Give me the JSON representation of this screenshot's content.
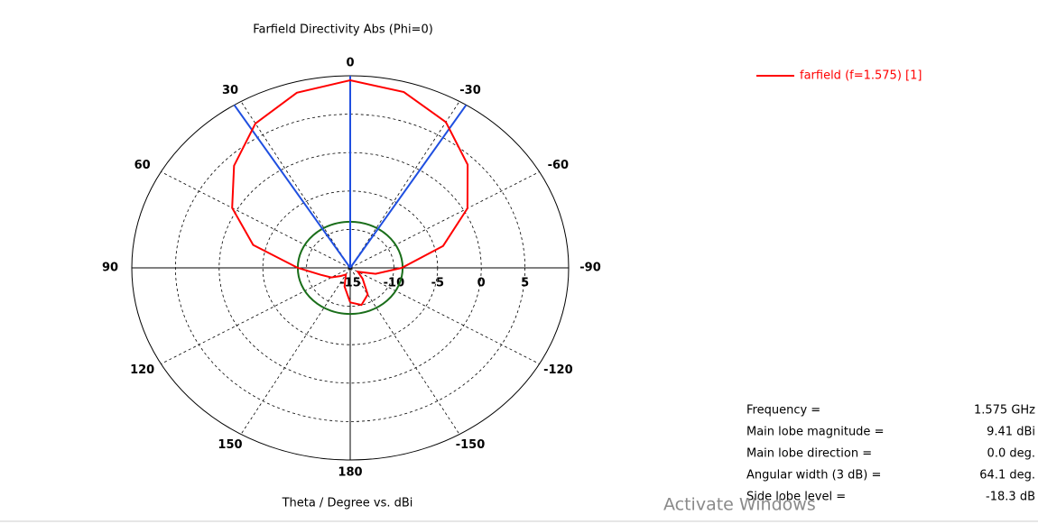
{
  "chart_data": {
    "type": "polar",
    "title": "Farfield Directivity Abs (Phi=0)",
    "axis_label": "Theta / Degree vs. dBi",
    "rlim": [
      -15,
      10
    ],
    "rticks": [
      -15,
      -10,
      -5,
      0,
      5
    ],
    "thetaticks": [
      0,
      30,
      60,
      90,
      120,
      150,
      180,
      -150,
      -120,
      -90,
      -60,
      -30
    ],
    "circle_level": -9,
    "circle_color": "#1a6e1a",
    "beam_color": "#1f4fe0",
    "series": [
      {
        "name": "farfield (f=1.575) [1]",
        "color": "#ff0000",
        "theta": [
          -180,
          -165,
          -150,
          -135,
          -120,
          -105,
          -90,
          -75,
          -60,
          -45,
          -30,
          -15,
          0,
          15,
          30,
          45,
          60,
          75,
          90,
          105,
          120,
          135,
          150,
          165,
          180
        ],
        "values": [
          -10.5,
          -10,
          -11,
          -13,
          -14,
          -12,
          -9.1,
          -4,
          0.5,
          4.0,
          6.9,
          8.7,
          9.41,
          8.6,
          6.7,
          3.8,
          0.6,
          -3.5,
          -9,
          -11.5,
          -12.5,
          -13.5,
          -14,
          -12.5,
          -10.5
        ]
      }
    ],
    "info": [
      {
        "label": "Frequency =",
        "value": "1.575 GHz"
      },
      {
        "label": "Main lobe magnitude =",
        "value": "9.41 dBi"
      },
      {
        "label": "Main lobe direction =",
        "value": "0.0 deg."
      },
      {
        "label": "Angular width (3 dB) =",
        "value": "64.1 deg."
      },
      {
        "label": "Side lobe level =",
        "value": "-18.3 dB"
      }
    ],
    "watermark": "Activate Windows"
  }
}
